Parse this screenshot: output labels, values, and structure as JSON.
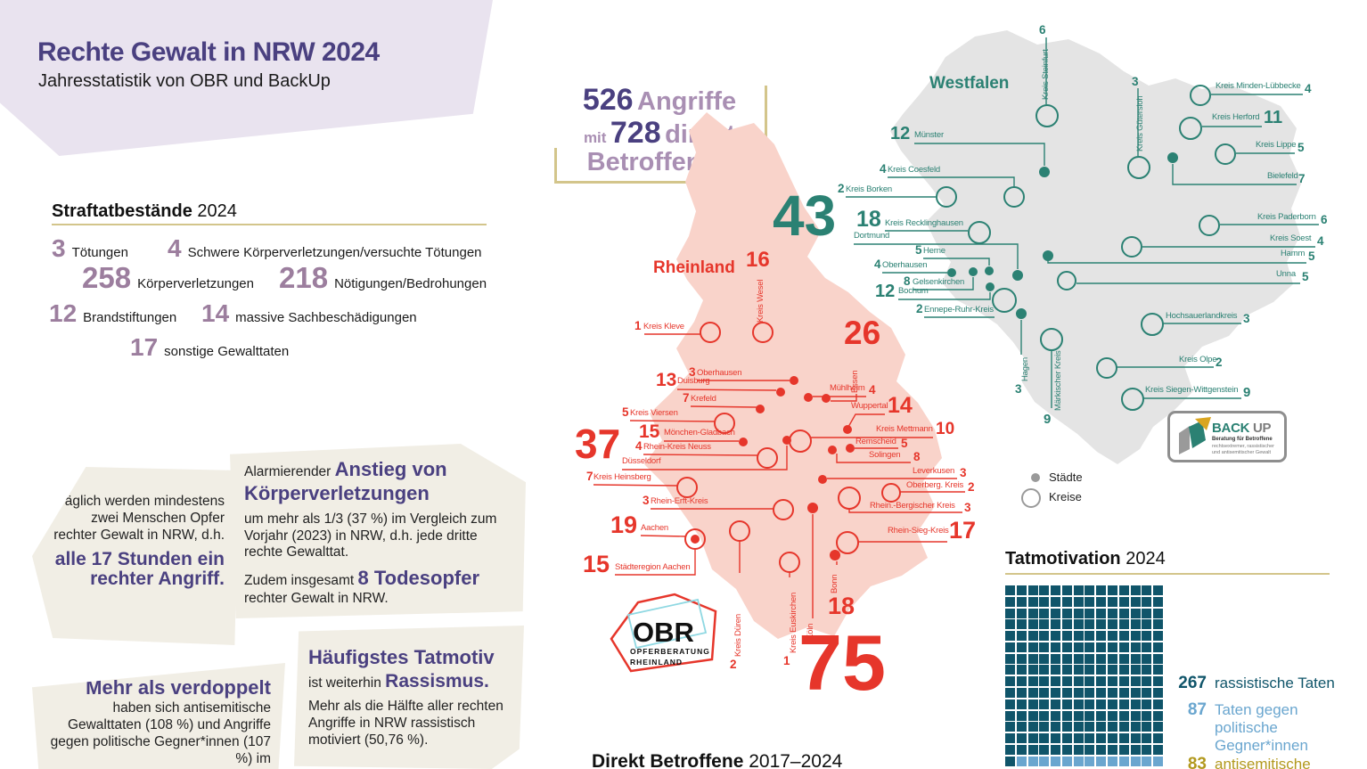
{
  "colors": {
    "purple": "#4a4080",
    "mauve": "#9c7e9e",
    "light_mauve": "#a98fb3",
    "lavender": "#e9e3ef",
    "beige": "#f1eee5",
    "khaki": "#d3c58b",
    "red": "#e6362b",
    "pink": "#f9d3ca",
    "green": "#2b8173",
    "gray_map": "#e4e4e4",
    "dark_teal": "#10556a",
    "light_blue": "#6aa6cf",
    "gold": "#b2991e",
    "legend_gray": "#9a9a9a"
  },
  "header": {
    "title": "Rechte Gewalt in NRW 2024",
    "subtitle": "Jahresstatistik von OBR und BackUp"
  },
  "attacks_callout": {
    "num1": "526",
    "word1": "Angriffe",
    "pre2": "mit",
    "num2": "728",
    "word2": "direkt",
    "word3": "Betroffenen"
  },
  "offenses": {
    "heading": "Straftatbestände",
    "year": "2024",
    "items": [
      {
        "value": "3",
        "label": "Tötungen"
      },
      {
        "value": "4",
        "label": "Schwere Körperverletzungen/versuchte Tötungen"
      },
      {
        "value": "258",
        "label": "Körperverletzungen"
      },
      {
        "value": "218",
        "label": "Nötigungen/Bedrohungen"
      },
      {
        "value": "12",
        "label": "Brandstiftungen"
      },
      {
        "value": "14",
        "label": "massive Sachbeschädigungen"
      },
      {
        "value": "17",
        "label": "sonstige Gewalttaten"
      }
    ]
  },
  "info_blocks": {
    "daily": {
      "text": "Täglich werden mindestens zwei Menschen Opfer rechter Gewalt in NRW, d.h.",
      "highlight": "alle 17 Stunden ein rechter Angriff."
    },
    "increase": {
      "pre": "Alarmierender",
      "highlight1": "Anstieg von Körperverletzungen",
      "body": "um mehr als 1/3 (37 %) im Vergleich zum Vorjahr (2023) in NRW, d.h. jede dritte rechte Gewalttat.",
      "pre2": "Zudem insgesamt",
      "highlight2": "8 Todesopfer",
      "post2": "rechter Gewalt in NRW."
    },
    "doubled": {
      "highlight": "Mehr als verdoppelt",
      "body": "haben sich antisemitische Gewalttaten (108 %) und Angriffe gegen politische Gegner*innen (107 %) im"
    },
    "motive": {
      "highlight1": "Häufigstes Tatmotiv",
      "pre": "ist weiterhin",
      "highlight2": "Rassismus.",
      "body": "Mehr als die Hälfte aller rechten Angriffe in NRW rassistisch motiviert (50,76 %)."
    }
  },
  "map": {
    "rheinland_title": "Rheinland",
    "westfalen_title": "Westfalen",
    "legend": {
      "staedte": "Städte",
      "kreise": "Kreise"
    },
    "rheinland_labels": [
      {
        "id": "kreis-kleve",
        "label": "Kreis Kleve",
        "value": "1"
      },
      {
        "id": "kreis-wesel",
        "label": "Kreis Wesel",
        "value": "16"
      },
      {
        "id": "oberhausen-r",
        "label": "Oberhausen",
        "value": "3"
      },
      {
        "id": "duisburg",
        "label": "Duisburg",
        "value": "13"
      },
      {
        "id": "muehlheim",
        "label": "Mühlheim",
        "value": "4"
      },
      {
        "id": "essen",
        "label": "Essen",
        "value": "26"
      },
      {
        "id": "krefeld",
        "label": "Krefeld",
        "value": "7"
      },
      {
        "id": "kreis-viersen",
        "label": "Kreis Viersen",
        "value": "5"
      },
      {
        "id": "moenchen-gladbach",
        "label": "Mönchen-Gladbach",
        "value": "15"
      },
      {
        "id": "rhein-kreis-neuss",
        "label": "Rhein-Kreis Neuss",
        "value": "4"
      },
      {
        "id": "duesseldorf",
        "label": "Düsseldorf",
        "value": "37"
      },
      {
        "id": "kreis-heinsberg",
        "label": "Kreis Heinsberg",
        "value": "7"
      },
      {
        "id": "wuppertal",
        "label": "Wuppertal",
        "value": "14"
      },
      {
        "id": "kreis-mettmann",
        "label": "Kreis Mettmann",
        "value": "10"
      },
      {
        "id": "remscheid",
        "label": "Remscheid",
        "value": "5"
      },
      {
        "id": "solingen",
        "label": "Solingen",
        "value": "8"
      },
      {
        "id": "rhein-erft-kreis",
        "label": "Rhein-Erft-Kreis",
        "value": "3"
      },
      {
        "id": "leverkusen",
        "label": "Leverkusen",
        "value": "3"
      },
      {
        "id": "oberbergischer-kreis",
        "label": "Oberberg. Kreis",
        "value": "2"
      },
      {
        "id": "rheinisch-bergischer-kreis",
        "label": "Rhein.-Bergischer Kreis",
        "value": "3"
      },
      {
        "id": "rhein-sieg-kreis",
        "label": "Rhein-Sieg-Kreis",
        "value": "17"
      },
      {
        "id": "aachen",
        "label": "Aachen",
        "value": "19"
      },
      {
        "id": "staedteregion-aachen",
        "label": "Städteregion Aachen",
        "value": "15"
      },
      {
        "id": "kreis-dueren",
        "label": "Kreis Düren",
        "value": "2"
      },
      {
        "id": "kreis-euskirchen",
        "label": "Kreis Euskirchen",
        "value": "1"
      },
      {
        "id": "koeln",
        "label": "Köln",
        "value": "75"
      },
      {
        "id": "bonn",
        "label": "Bonn",
        "value": "18"
      }
    ],
    "westfalen_labels": [
      {
        "id": "muenster",
        "label": "Münster",
        "value": "12"
      },
      {
        "id": "kreis-steinfurt",
        "label": "Kreis Steinfurt",
        "value": "6"
      },
      {
        "id": "kreis-guetersloh",
        "label": "Kreis Gütersloh",
        "value": "3"
      },
      {
        "id": "kreis-borken",
        "label": "Kreis Borken",
        "value": "2"
      },
      {
        "id": "kreis-coesfeld",
        "label": "Kreis Coesfeld",
        "value": "4"
      },
      {
        "id": "kreis-minden-luebbecke",
        "label": "Kreis Minden-Lübbecke",
        "value": "4"
      },
      {
        "id": "kreis-herford",
        "label": "Kreis Herford",
        "value": "11"
      },
      {
        "id": "kreis-lippe",
        "label": "Kreis Lippe",
        "value": "5"
      },
      {
        "id": "bielefeld",
        "label": "Bielefeld",
        "value": "7"
      },
      {
        "id": "kreis-paderborn",
        "label": "Kreis Paderborn",
        "value": "6"
      },
      {
        "id": "kreis-soest",
        "label": "Kreis Soest",
        "value": "4"
      },
      {
        "id": "hamm",
        "label": "Hamm",
        "value": "5"
      },
      {
        "id": "unna",
        "label": "Unna",
        "value": "5"
      },
      {
        "id": "kreis-recklinghausen",
        "label": "Kreis Recklinghausen",
        "value": "18"
      },
      {
        "id": "dortmund",
        "label": "Dortmund",
        "value": "43"
      },
      {
        "id": "herne",
        "label": "Herne",
        "value": "5"
      },
      {
        "id": "oberhausen-w",
        "label": "Oberhausen",
        "value": "4"
      },
      {
        "id": "gelsenkirchen",
        "label": "Gelsenkirchen",
        "value": "8"
      },
      {
        "id": "bochum",
        "label": "Bochum",
        "value": "12"
      },
      {
        "id": "ennepe-ruhr-kreis",
        "label": "Ennepe-Ruhr-Kreis",
        "value": "2"
      },
      {
        "id": "hagen",
        "label": "Hagen",
        "value": "3"
      },
      {
        "id": "maerkischer-kreis",
        "label": "Märkischer Kreis",
        "value": "9"
      },
      {
        "id": "hochsauerlandkreis",
        "label": "Hochsauerlandkreis",
        "value": "3"
      },
      {
        "id": "kreis-olpe",
        "label": "Kreis Olpe",
        "value": "2"
      },
      {
        "id": "kreis-siegen-wittgenstein",
        "label": "Kreis Siegen-Wittgenstein",
        "value": "9"
      }
    ]
  },
  "logos": {
    "obr": {
      "name": "OBR",
      "sub1": "OPFERBERATUNG",
      "sub2": "RHEINLAND"
    },
    "backup": {
      "name1": "BACK",
      "name2": "UP",
      "sub1": "Beratung für Betroffene",
      "sub2": "rechtsextremer, rassistischer\nund antisemitischer Gewalt"
    }
  },
  "tatmotivation": {
    "heading": "Tatmotivation",
    "year": "2024",
    "legend": [
      {
        "value": "267",
        "label": "rassistische Taten",
        "color": "#10556a"
      },
      {
        "value": "87",
        "label": "Taten gegen\npolitische\nGegner*innen",
        "color": "#6aa6cf"
      },
      {
        "value": "83",
        "label": "antisemitische",
        "color": "#b2991e"
      }
    ]
  },
  "betroffene": {
    "title": "Direkt Betroffene",
    "range": "2017–2024"
  },
  "chart_data": [
    {
      "type": "table",
      "title": "Straftatbestände 2024",
      "columns": [
        "Straftatbestand",
        "Anzahl"
      ],
      "rows": [
        [
          "Tötungen",
          3
        ],
        [
          "Schwere Körperverletzungen/versuchte Tötungen",
          4
        ],
        [
          "Körperverletzungen",
          258
        ],
        [
          "Nötigungen/Bedrohungen",
          218
        ],
        [
          "Brandstiftungen",
          12
        ],
        [
          "massive Sachbeschädigungen",
          14
        ],
        [
          "sonstige Gewalttaten",
          17
        ]
      ]
    },
    {
      "type": "heatmap",
      "title": "526 Angriffe mit 728 direkt Betroffenen — Karte NRW 2024",
      "series": [
        {
          "name": "Rheinland",
          "points": [
            [
              "Kreis Kleve",
              1
            ],
            [
              "Kreis Wesel",
              16
            ],
            [
              "Oberhausen",
              3
            ],
            [
              "Duisburg",
              13
            ],
            [
              "Mühlheim",
              4
            ],
            [
              "Essen",
              26
            ],
            [
              "Krefeld",
              7
            ],
            [
              "Kreis Viersen",
              5
            ],
            [
              "Mönchen-Gladbach",
              15
            ],
            [
              "Rhein-Kreis Neuss",
              4
            ],
            [
              "Düsseldorf",
              37
            ],
            [
              "Kreis Heinsberg",
              7
            ],
            [
              "Wuppertal",
              14
            ],
            [
              "Kreis Mettmann",
              10
            ],
            [
              "Remscheid",
              5
            ],
            [
              "Solingen",
              8
            ],
            [
              "Rhein-Erft-Kreis",
              3
            ],
            [
              "Leverkusen",
              3
            ],
            [
              "Oberberg. Kreis",
              2
            ],
            [
              "Rhein.-Bergischer Kreis",
              3
            ],
            [
              "Rhein-Sieg-Kreis",
              17
            ],
            [
              "Aachen",
              19
            ],
            [
              "Städteregion Aachen",
              15
            ],
            [
              "Kreis Düren",
              2
            ],
            [
              "Kreis Euskirchen",
              1
            ],
            [
              "Köln",
              75
            ],
            [
              "Bonn",
              18
            ]
          ]
        },
        {
          "name": "Westfalen",
          "points": [
            [
              "Münster",
              12
            ],
            [
              "Kreis Steinfurt",
              6
            ],
            [
              "Kreis Gütersloh",
              3
            ],
            [
              "Kreis Borken",
              2
            ],
            [
              "Kreis Coesfeld",
              4
            ],
            [
              "Kreis Minden-Lübbecke",
              4
            ],
            [
              "Kreis Herford",
              11
            ],
            [
              "Kreis Lippe",
              5
            ],
            [
              "Bielefeld",
              7
            ],
            [
              "Kreis Paderborn",
              6
            ],
            [
              "Kreis Soest",
              4
            ],
            [
              "Hamm",
              5
            ],
            [
              "Unna",
              5
            ],
            [
              "Kreis Recklinghausen",
              18
            ],
            [
              "Dortmund",
              43
            ],
            [
              "Herne",
              5
            ],
            [
              "Oberhausen",
              4
            ],
            [
              "Gelsenkirchen",
              8
            ],
            [
              "Bochum",
              12
            ],
            [
              "Ennepe-Ruhr-Kreis",
              2
            ],
            [
              "Hagen",
              3
            ],
            [
              "Märkischer Kreis",
              9
            ],
            [
              "Hochsauerlandkreis",
              3
            ],
            [
              "Kreis Olpe",
              2
            ],
            [
              "Kreis Siegen-Wittgenstein",
              9
            ]
          ]
        }
      ],
      "legend_position": "right",
      "legend_entries": [
        "Städte",
        "Kreise"
      ]
    },
    {
      "type": "waffle",
      "title": "Tatmotivation 2024",
      "categories": [
        "rassistische Taten",
        "Taten gegen politische Gegner*innen",
        "antisemitische"
      ],
      "values": [
        267,
        87,
        83
      ],
      "colors": [
        "#10556a",
        "#6aa6cf",
        "#b2991e"
      ],
      "layout": "14 Spalten, am unteren Bildrand abgeschnitten"
    }
  ]
}
